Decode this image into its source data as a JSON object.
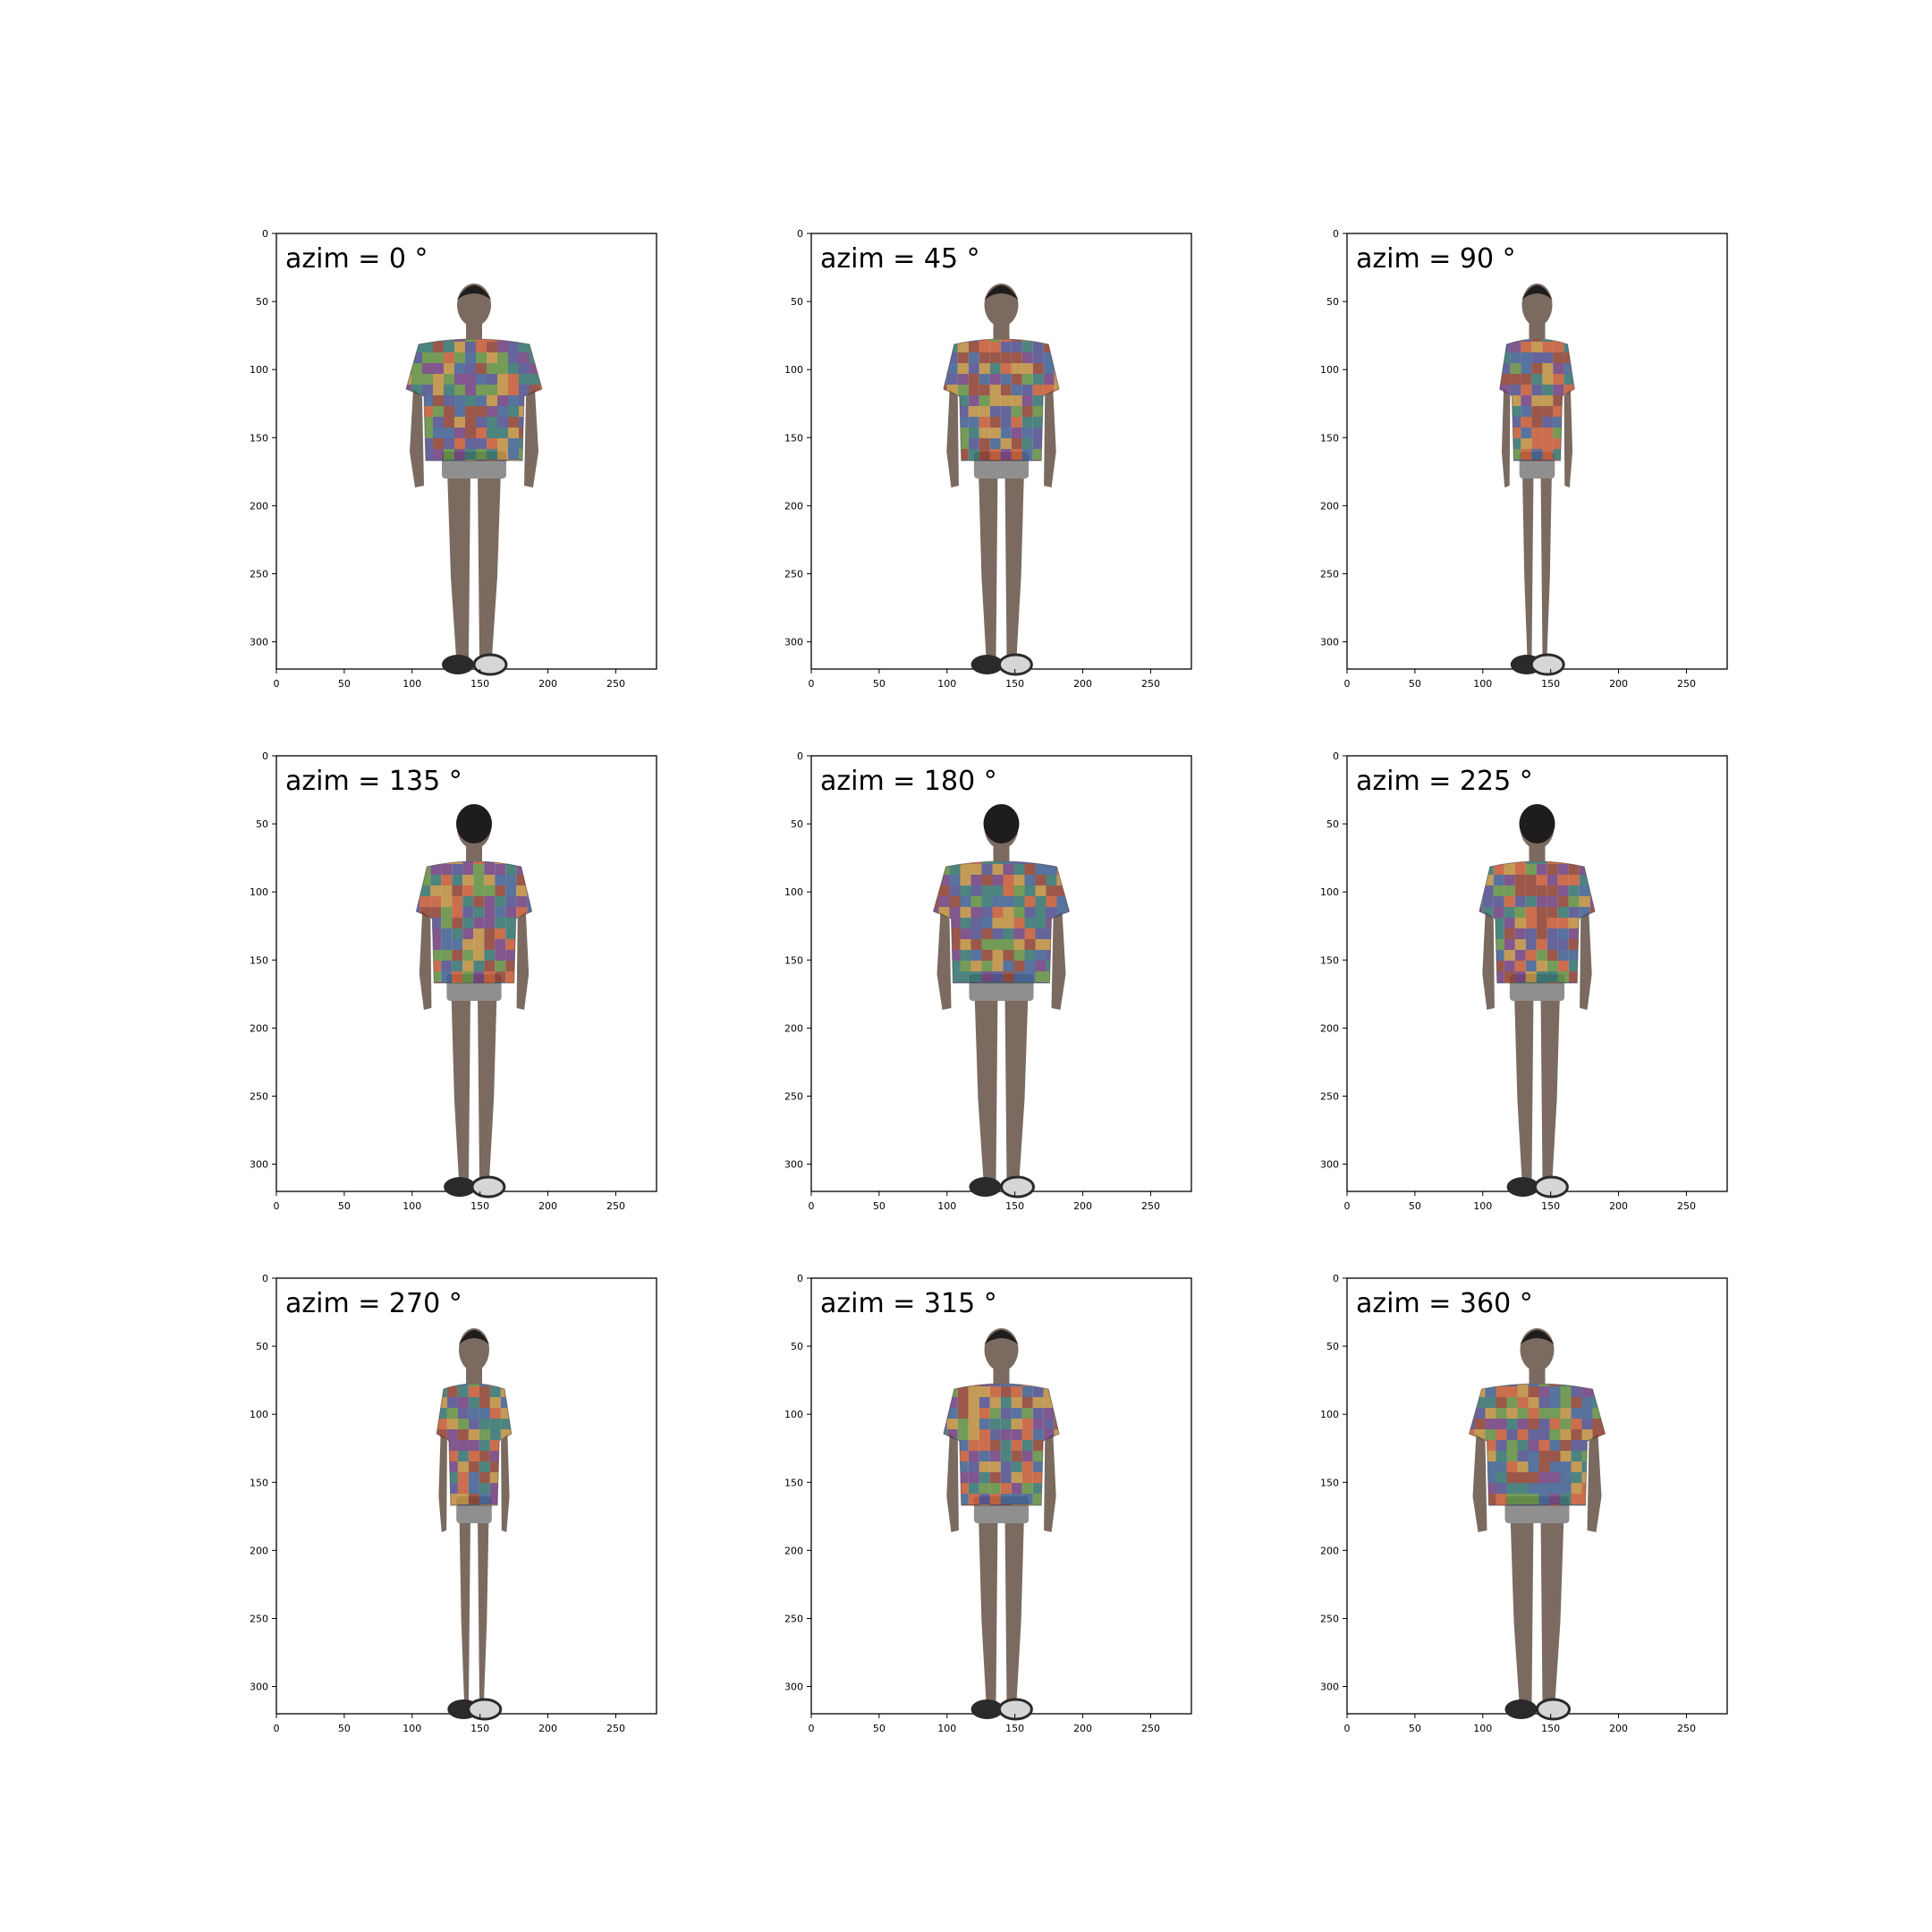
{
  "figure": {
    "x_ticks": [
      "0",
      "50",
      "100",
      "150",
      "200",
      "250"
    ],
    "y_ticks": [
      "0",
      "50",
      "100",
      "150",
      "200",
      "250",
      "300"
    ],
    "panels": [
      {
        "label": "azim = 0 °",
        "view": "front"
      },
      {
        "label": "azim = 45 °",
        "view": "front-three-quarter"
      },
      {
        "label": "azim = 90 °",
        "view": "side"
      },
      {
        "label": "azim = 135 °",
        "view": "back-three-quarter"
      },
      {
        "label": "azim = 180 °",
        "view": "back"
      },
      {
        "label": "azim = 225 °",
        "view": "back-three-quarter"
      },
      {
        "label": "azim = 270 °",
        "view": "side"
      },
      {
        "label": "azim = 315 °",
        "view": "front-three-quarter"
      },
      {
        "label": "azim = 360 °",
        "view": "front"
      }
    ],
    "colors": {
      "skin": "#7a6a60",
      "hair": "#1e1c1c",
      "shorts": "#8f8f8f",
      "shoe": "#2a2a2a",
      "shoe_light": "#d6d6d6",
      "shirt_texture": [
        "#8a3b2a",
        "#3b5a8c",
        "#5c8a3a",
        "#b98a3a",
        "#6b3a7a",
        "#2f6f6a",
        "#c2552f",
        "#4a4a8a"
      ]
    }
  }
}
